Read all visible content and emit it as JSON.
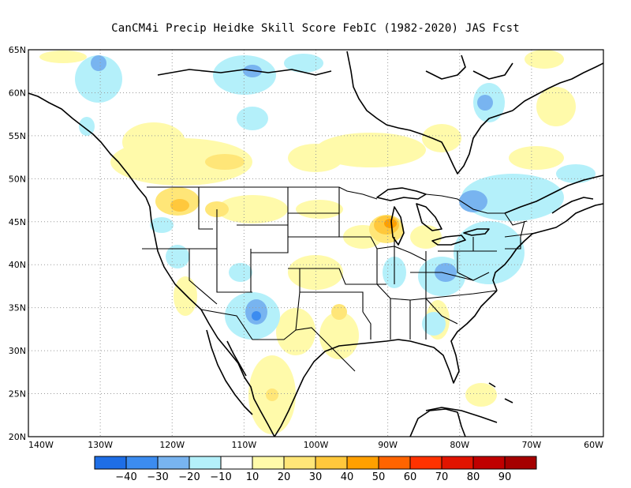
{
  "title": "CanCM4i Precip Heidke Skill Score FebIC (1982-2020) JAS Fcst",
  "lat_labels": [
    "65N",
    "60N",
    "55N",
    "50N",
    "45N",
    "40N",
    "35N",
    "30N",
    "25N",
    "20N"
  ],
  "lon_labels": [
    "140W",
    "130W",
    "120W",
    "110W",
    "100W",
    "90W",
    "80W",
    "70W",
    "60W"
  ],
  "grid": true,
  "colorbar": {
    "labels": [
      "-40",
      "-30",
      "-20",
      "-10",
      "10",
      "20",
      "30",
      "40",
      "50",
      "60",
      "70",
      "80",
      "90"
    ],
    "colors": [
      "#1e6ee6",
      "#3c8cf0",
      "#78b4f0",
      "#b4f0fa",
      "#ffffff",
      "#fffaaa",
      "#ffe678",
      "#ffc83c",
      "#ffa000",
      "#ff6400",
      "#ff3200",
      "#e11400",
      "#c00000",
      "#a50000"
    ]
  },
  "colors": {
    "land_line": "#000000",
    "grid_line": "#999999"
  }
}
